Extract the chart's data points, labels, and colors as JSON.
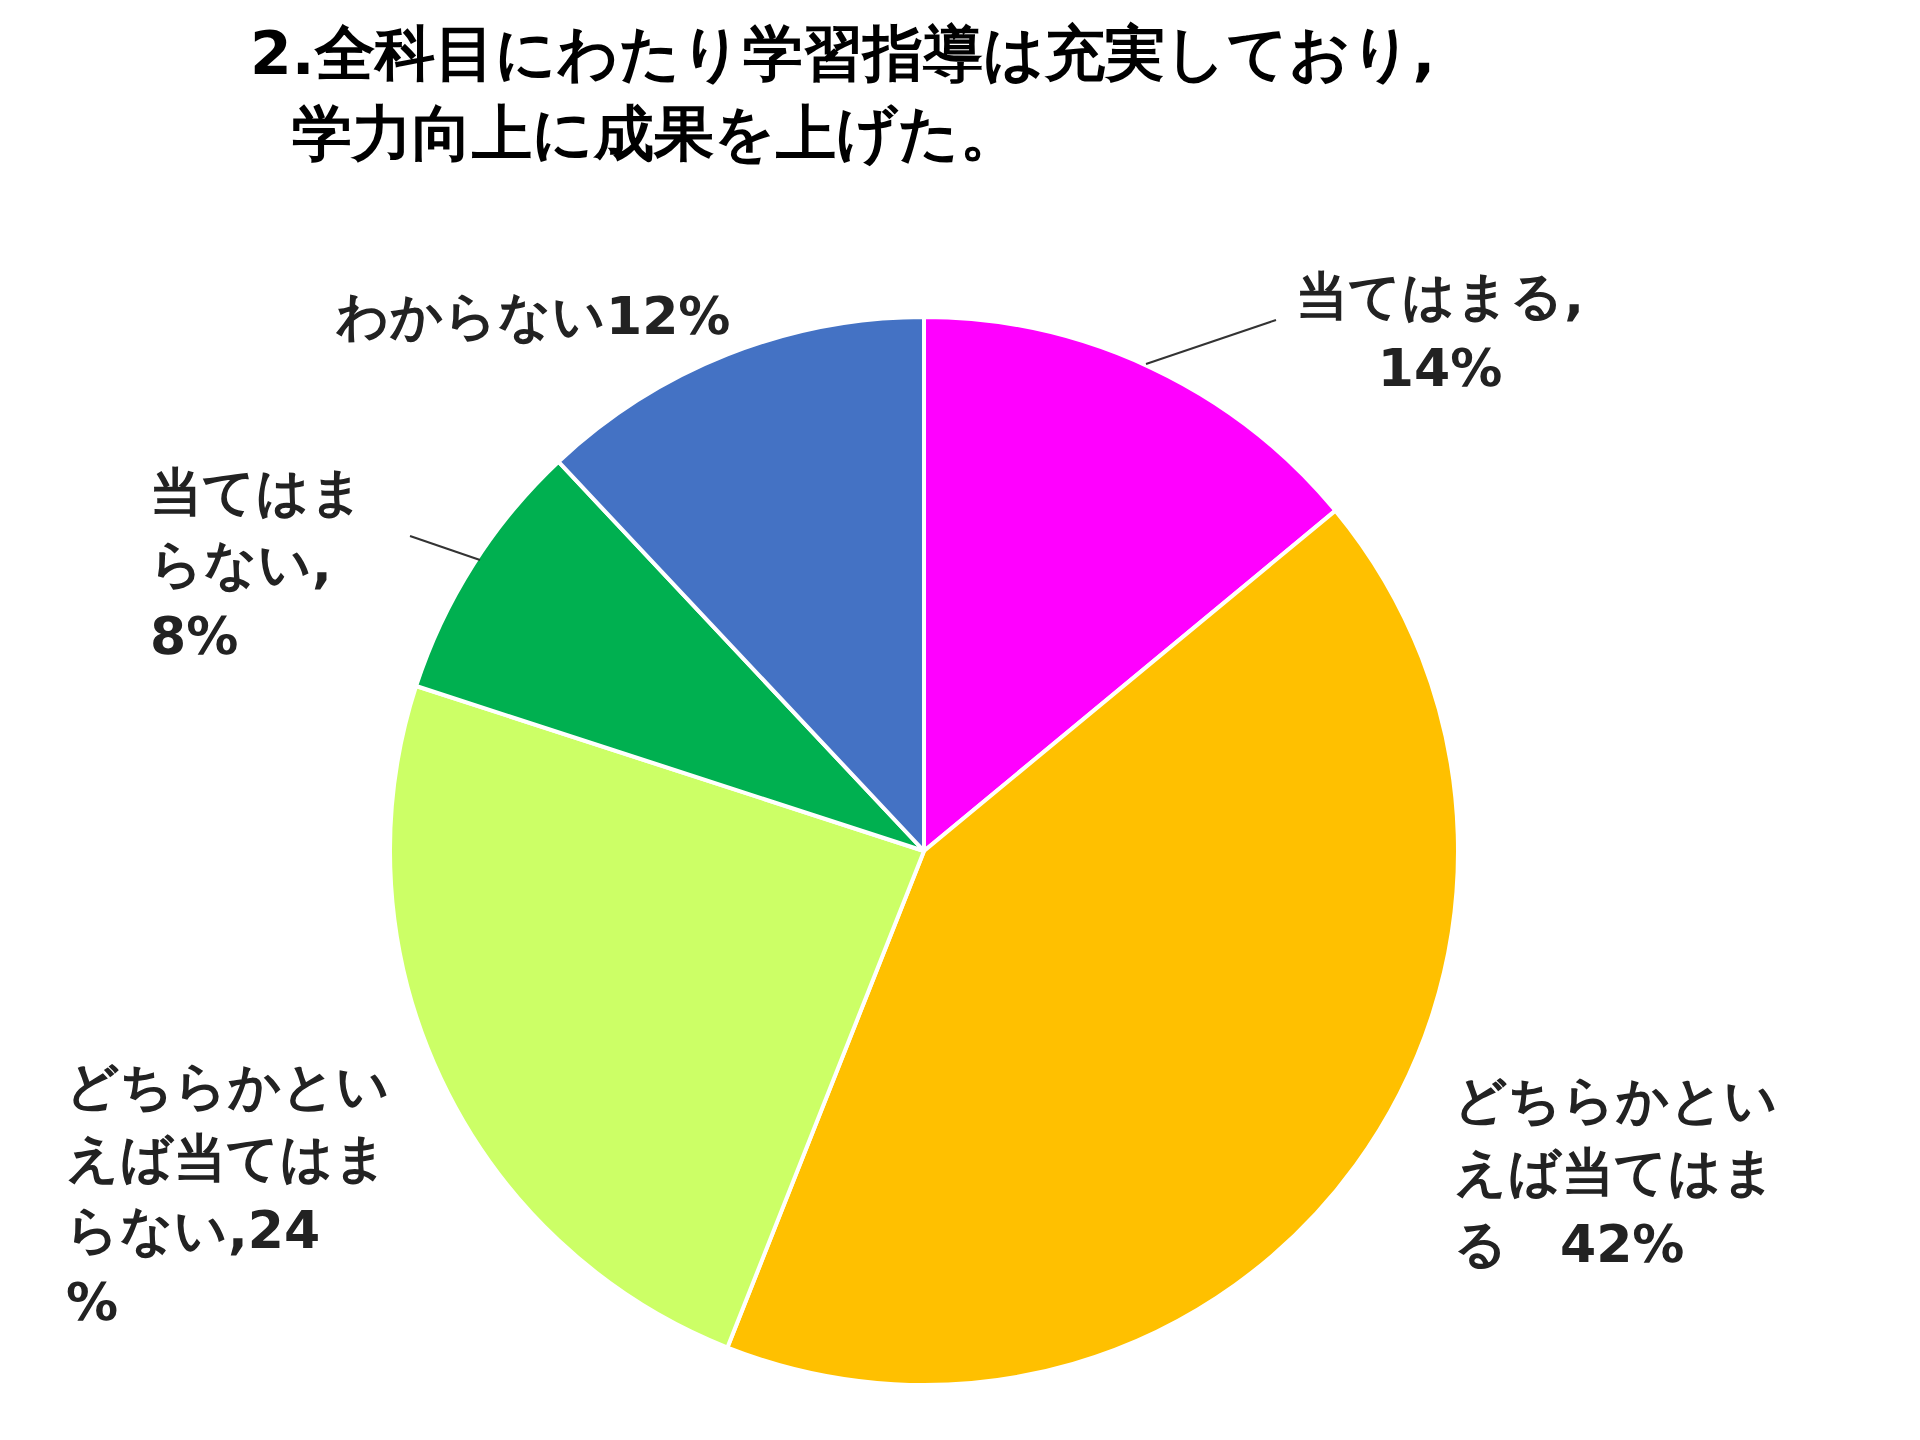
{
  "chart_data": {
    "type": "pie",
    "title": "2.全科目にわたり学習指導は充実しており,\n学力向上に成果を上げた。",
    "categories": [
      "当てはまる",
      "どちらかといえば当てはまる",
      "どちらかといえば当てはまらない",
      "当てはまらない",
      "わからない"
    ],
    "values": [
      14,
      42,
      24,
      8,
      12
    ],
    "value_labels": [
      ",14%",
      "　42%",
      ",24%",
      ",8%",
      "12%"
    ],
    "colors": [
      "#ff00ff",
      "#ffc000",
      "#ccff66",
      "#00b050",
      "#4472c4"
    ],
    "legend": false
  }
}
